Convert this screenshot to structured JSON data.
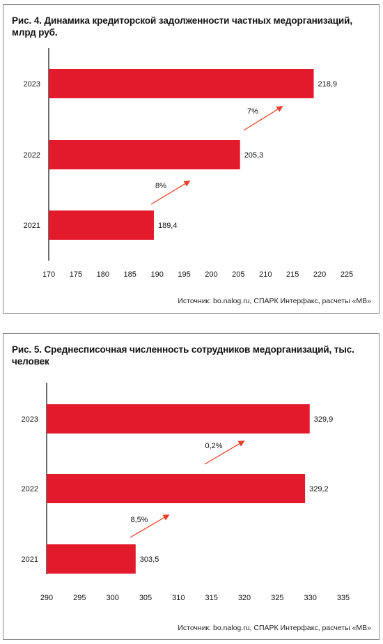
{
  "colors": {
    "bar": "#e3192c",
    "arrow": "#e8402a",
    "axis": "#222222"
  },
  "chart_data": [
    {
      "type": "bar",
      "orientation": "horizontal",
      "title": "Рис. 4. Динамика кредиторской задолженности частных медорганизаций, млрд руб.",
      "categories": [
        "2023",
        "2022",
        "2021"
      ],
      "values": [
        218.9,
        205.3,
        189.4
      ],
      "value_labels": [
        "218,9",
        "205,3",
        "189,4"
      ],
      "xlim": [
        170,
        225
      ],
      "xticks": [
        170,
        175,
        180,
        185,
        190,
        195,
        200,
        205,
        210,
        215,
        220,
        225
      ],
      "annotations": [
        {
          "text": "7%",
          "between": [
            "2022",
            "2023"
          ]
        },
        {
          "text": "8%",
          "between": [
            "2021",
            "2022"
          ]
        }
      ],
      "source": "Источник: bo.nalog.ru, СПАРК Интерфакс, расчеты «МВ»",
      "grid": false
    },
    {
      "type": "bar",
      "orientation": "horizontal",
      "title": "Рис. 5. Среднесписочная численность сотрудников медорганизаций, тыс. человек",
      "categories": [
        "2023",
        "2022",
        "2021"
      ],
      "values": [
        329.9,
        329.2,
        303.5
      ],
      "value_labels": [
        "329,9",
        "329,2",
        "303,5"
      ],
      "xlim": [
        290,
        335
      ],
      "xticks": [
        290,
        295,
        300,
        305,
        310,
        315,
        320,
        325,
        330,
        335
      ],
      "annotations": [
        {
          "text": "0,2%",
          "between": [
            "2022",
            "2023"
          ]
        },
        {
          "text": "8,5%",
          "between": [
            "2021",
            "2022"
          ]
        }
      ],
      "source": "Источник: bo.nalog.ru, СПАРК Интерфакс, расчеты «МВ»",
      "grid": false
    }
  ]
}
